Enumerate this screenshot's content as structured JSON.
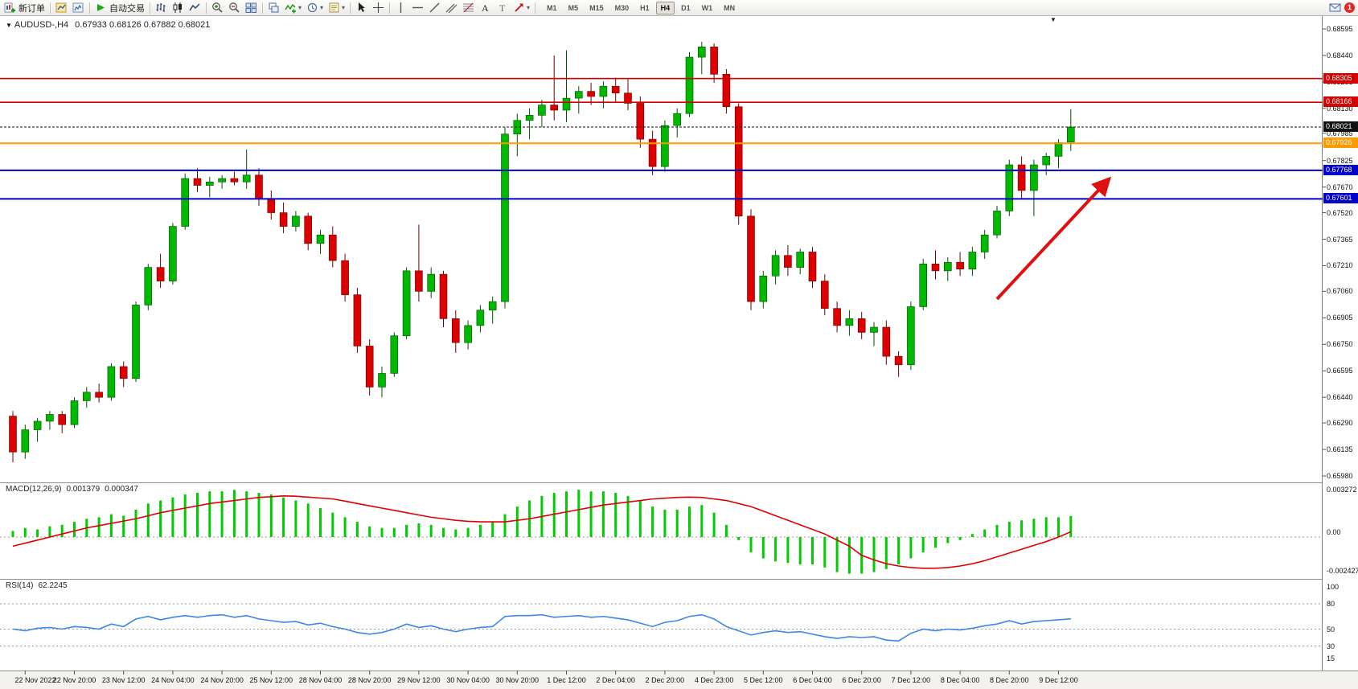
{
  "toolbar": {
    "new_order_label": "新订单",
    "autotrading_label": "自动交易",
    "timeframes": [
      "M1",
      "M5",
      "M15",
      "M30",
      "H1",
      "H4",
      "D1",
      "W1",
      "MN"
    ],
    "active_timeframe": "H4",
    "notification_count": "1"
  },
  "chart": {
    "menu_icon": "▼",
    "shift_marker": "▼",
    "title_symbol": "AUDUSD-,H4",
    "title_ohlc": "0.67933 0.68126 0.67882 0.68021"
  },
  "chart_data": {
    "type": "candlestick",
    "symbol": "AUDUSD-",
    "timeframe": "H4",
    "price_axis_labels": [
      "0.68595",
      "0.68440",
      "0.68285",
      "0.68130",
      "0.67985",
      "0.67825",
      "0.67670",
      "0.67520",
      "0.67365",
      "0.67210",
      "0.67060",
      "0.66905",
      "0.66750",
      "0.66595",
      "0.66440",
      "0.66290",
      "0.66135",
      "0.65980"
    ],
    "time_labels": [
      "22 Nov 2022",
      "22 Nov 20:00",
      "23 Nov 12:00",
      "24 Nov 04:00",
      "24 Nov 20:00",
      "25 Nov 12:00",
      "28 Nov 04:00",
      "28 Nov 20:00",
      "29 Nov 12:00",
      "30 Nov 04:00",
      "30 Nov 20:00",
      "1 Dec 12:00",
      "2 Dec 04:00",
      "2 Dec 20:00",
      "4 Dec 23:00",
      "5 Dec 12:00",
      "6 Dec 04:00",
      "6 Dec 20:00",
      "7 Dec 12:00",
      "8 Dec 04:00",
      "8 Dec 20:00",
      "9 Dec 12:00"
    ],
    "ohlc": [
      [
        0.6633,
        0.6636,
        0.6606,
        0.6612
      ],
      [
        0.6612,
        0.6628,
        0.6608,
        0.6625
      ],
      [
        0.6625,
        0.6632,
        0.6618,
        0.663
      ],
      [
        0.663,
        0.6636,
        0.6625,
        0.6634
      ],
      [
        0.6634,
        0.6636,
        0.6623,
        0.6628
      ],
      [
        0.6628,
        0.6644,
        0.6626,
        0.6642
      ],
      [
        0.6642,
        0.665,
        0.6638,
        0.6647
      ],
      [
        0.6647,
        0.6652,
        0.6641,
        0.6644
      ],
      [
        0.6644,
        0.6664,
        0.6642,
        0.6662
      ],
      [
        0.6662,
        0.6665,
        0.665,
        0.6655
      ],
      [
        0.6655,
        0.67,
        0.6653,
        0.6698
      ],
      [
        0.6698,
        0.6722,
        0.6695,
        0.672
      ],
      [
        0.672,
        0.6728,
        0.6708,
        0.6712
      ],
      [
        0.6712,
        0.6746,
        0.671,
        0.6744
      ],
      [
        0.6744,
        0.6775,
        0.6742,
        0.6772
      ],
      [
        0.6772,
        0.6778,
        0.6764,
        0.6768
      ],
      [
        0.6768,
        0.6773,
        0.6761,
        0.677
      ],
      [
        0.677,
        0.6774,
        0.6766,
        0.6772
      ],
      [
        0.6772,
        0.6776,
        0.6768,
        0.677
      ],
      [
        0.677,
        0.6789,
        0.6766,
        0.6774
      ],
      [
        0.6774,
        0.6778,
        0.6756,
        0.676
      ],
      [
        0.676,
        0.6765,
        0.6748,
        0.6752
      ],
      [
        0.6752,
        0.6758,
        0.674,
        0.6744
      ],
      [
        0.6744,
        0.6753,
        0.6741,
        0.675
      ],
      [
        0.675,
        0.6752,
        0.673,
        0.6734
      ],
      [
        0.6734,
        0.6742,
        0.6728,
        0.6739
      ],
      [
        0.6739,
        0.6744,
        0.672,
        0.6724
      ],
      [
        0.6724,
        0.6728,
        0.67,
        0.6704
      ],
      [
        0.6704,
        0.6708,
        0.667,
        0.6674
      ],
      [
        0.6674,
        0.6678,
        0.6645,
        0.665
      ],
      [
        0.665,
        0.6662,
        0.6644,
        0.6658
      ],
      [
        0.6658,
        0.6682,
        0.6656,
        0.668
      ],
      [
        0.668,
        0.672,
        0.6678,
        0.6718
      ],
      [
        0.6718,
        0.6745,
        0.67,
        0.6706
      ],
      [
        0.6706,
        0.672,
        0.6702,
        0.6716
      ],
      [
        0.6716,
        0.6718,
        0.6685,
        0.669
      ],
      [
        0.669,
        0.6695,
        0.667,
        0.6676
      ],
      [
        0.6676,
        0.6689,
        0.6672,
        0.6686
      ],
      [
        0.6686,
        0.6698,
        0.6682,
        0.6695
      ],
      [
        0.6695,
        0.6703,
        0.6687,
        0.67
      ],
      [
        0.67,
        0.6802,
        0.6696,
        0.6798
      ],
      [
        0.6798,
        0.681,
        0.6785,
        0.6806
      ],
      [
        0.6806,
        0.6813,
        0.6795,
        0.6809
      ],
      [
        0.6809,
        0.6818,
        0.6802,
        0.6815
      ],
      [
        0.6815,
        0.6844,
        0.6806,
        0.6812
      ],
      [
        0.6812,
        0.6847,
        0.6805,
        0.6819
      ],
      [
        0.6819,
        0.6826,
        0.681,
        0.6823
      ],
      [
        0.6823,
        0.6828,
        0.6815,
        0.682
      ],
      [
        0.682,
        0.6829,
        0.6813,
        0.6826
      ],
      [
        0.6826,
        0.6831,
        0.6817,
        0.6822
      ],
      [
        0.6822,
        0.683,
        0.6812,
        0.6816
      ],
      [
        0.6816,
        0.682,
        0.679,
        0.6795
      ],
      [
        0.6795,
        0.68,
        0.6774,
        0.6779
      ],
      [
        0.6779,
        0.6806,
        0.6776,
        0.6803
      ],
      [
        0.6803,
        0.6813,
        0.6796,
        0.681
      ],
      [
        0.681,
        0.6846,
        0.6808,
        0.6843
      ],
      [
        0.6843,
        0.6852,
        0.6833,
        0.6849
      ],
      [
        0.6849,
        0.6851,
        0.6828,
        0.6833
      ],
      [
        0.6833,
        0.6836,
        0.681,
        0.6814
      ],
      [
        0.6814,
        0.6816,
        0.6745,
        0.675
      ],
      [
        0.675,
        0.6754,
        0.6695,
        0.67
      ],
      [
        0.67,
        0.6718,
        0.6696,
        0.6715
      ],
      [
        0.6715,
        0.673,
        0.671,
        0.6727
      ],
      [
        0.6727,
        0.6733,
        0.6715,
        0.672
      ],
      [
        0.672,
        0.6731,
        0.6716,
        0.6729
      ],
      [
        0.6729,
        0.6732,
        0.6708,
        0.6712
      ],
      [
        0.6712,
        0.6716,
        0.6692,
        0.6696
      ],
      [
        0.6696,
        0.67,
        0.6682,
        0.6686
      ],
      [
        0.6686,
        0.6695,
        0.668,
        0.669
      ],
      [
        0.669,
        0.6694,
        0.6678,
        0.6682
      ],
      [
        0.6682,
        0.6688,
        0.6674,
        0.6685
      ],
      [
        0.6685,
        0.6689,
        0.6663,
        0.6668
      ],
      [
        0.6668,
        0.6671,
        0.6656,
        0.6663
      ],
      [
        0.6663,
        0.67,
        0.666,
        0.6697
      ],
      [
        0.6697,
        0.6725,
        0.6695,
        0.6722
      ],
      [
        0.6722,
        0.673,
        0.6713,
        0.6718
      ],
      [
        0.6718,
        0.6726,
        0.6712,
        0.6723
      ],
      [
        0.6723,
        0.6729,
        0.6715,
        0.6719
      ],
      [
        0.6719,
        0.6732,
        0.6715,
        0.6729
      ],
      [
        0.6729,
        0.6742,
        0.6725,
        0.6739
      ],
      [
        0.6739,
        0.6756,
        0.6737,
        0.6753
      ],
      [
        0.6753,
        0.6783,
        0.675,
        0.678
      ],
      [
        0.678,
        0.6785,
        0.676,
        0.6765
      ],
      [
        0.6765,
        0.6783,
        0.675,
        0.678
      ],
      [
        0.678,
        0.6787,
        0.6774,
        0.6785
      ],
      [
        0.6785,
        0.6795,
        0.6778,
        0.6793
      ],
      [
        0.67933,
        0.68126,
        0.67882,
        0.68021
      ]
    ],
    "levels": [
      {
        "price": 0.68305,
        "label": "0.68305",
        "color": "#d40000",
        "width": 1.6
      },
      {
        "price": 0.68166,
        "label": "0.68166",
        "color": "#d40000",
        "width": 1.6
      },
      {
        "price": 0.67926,
        "label": "0.67926",
        "color": "#ff9900",
        "width": 2
      },
      {
        "price": 0.67768,
        "label": "0.67768",
        "color": "#0000cc",
        "width": 2
      },
      {
        "price": 0.67601,
        "label": "0.67601",
        "color": "#0000cc",
        "width": 2
      }
    ],
    "current_price": {
      "price": 0.68021,
      "label": "0.68021",
      "tag_color": "#111111"
    },
    "macd": {
      "label": "MACD(12,26,9)",
      "value_main": "0.001379",
      "value_signal": "0.000347",
      "axis_labels": [
        "0.003272",
        "0.00",
        "-0.002427"
      ],
      "axis_values": [
        0.003272,
        0,
        -0.002427
      ],
      "histogram_color": "#00cc00",
      "signal_color": "#e00000",
      "histogram": [
        0.0004,
        0.0006,
        0.0005,
        0.0007,
        0.0008,
        0.001,
        0.0012,
        0.0013,
        0.0015,
        0.0014,
        0.0018,
        0.0022,
        0.0024,
        0.0026,
        0.0028,
        0.0029,
        0.003,
        0.003,
        0.0031,
        0.003,
        0.0029,
        0.0028,
        0.0026,
        0.0024,
        0.0022,
        0.0019,
        0.0016,
        0.0013,
        0.001,
        0.0007,
        0.0006,
        0.0006,
        0.0008,
        0.0009,
        0.0008,
        0.0006,
        0.0005,
        0.0006,
        0.0008,
        0.001,
        0.0015,
        0.002,
        0.0024,
        0.0027,
        0.0029,
        0.003,
        0.0031,
        0.003,
        0.003,
        0.0029,
        0.0027,
        0.0024,
        0.002,
        0.0018,
        0.0018,
        0.002,
        0.0021,
        0.0016,
        0.0008,
        -0.0002,
        -0.001,
        -0.0014,
        -0.0016,
        -0.0017,
        -0.0018,
        -0.0018,
        -0.002,
        -0.0023,
        -0.0024,
        -0.0024,
        -0.0023,
        -0.0021,
        -0.0018,
        -0.0014,
        -0.001,
        -0.0007,
        -0.0004,
        -0.0002,
        0.0002,
        0.0005,
        0.0008,
        0.001,
        0.0011,
        0.0012,
        0.0013,
        0.0013,
        0.001379
      ],
      "signal": [
        -0.0006,
        -0.0004,
        -0.0002,
        0,
        0.0002,
        0.0004,
        0.0006,
        0.00075,
        0.0009,
        0.00105,
        0.0012,
        0.0014,
        0.0016,
        0.00175,
        0.0019,
        0.00205,
        0.0022,
        0.0023,
        0.0024,
        0.0025,
        0.0026,
        0.00265,
        0.0027,
        0.00268,
        0.00262,
        0.00256,
        0.0025,
        0.00236,
        0.0022,
        0.00205,
        0.0019,
        0.00175,
        0.0016,
        0.00145,
        0.0013,
        0.0012,
        0.0011,
        0.00103,
        0.001,
        0.001,
        0.001,
        0.0011,
        0.0012,
        0.00135,
        0.0015,
        0.00165,
        0.0018,
        0.00195,
        0.0021,
        0.0022,
        0.0023,
        0.0024,
        0.0025,
        0.00255,
        0.0026,
        0.00262,
        0.0026,
        0.0025,
        0.0024,
        0.0022,
        0.002,
        0.0017,
        0.0014,
        0.0011,
        0.0008,
        0.0005,
        0.0002,
        -0.0002,
        -0.0006,
        -0.0012,
        -0.0015,
        -0.00175,
        -0.0019,
        -0.002,
        -0.00205,
        -0.00205,
        -0.002,
        -0.0019,
        -0.00175,
        -0.00155,
        -0.0013,
        -0.00105,
        -0.0008,
        -0.00055,
        -0.0003,
        0,
        0.000347
      ]
    },
    "rsi": {
      "label": "RSI(14)",
      "value": "62.2245",
      "line_color": "#3e86e8",
      "axis_labels": [
        "100",
        "80",
        "50",
        "30",
        "15"
      ],
      "level_lines": [
        80,
        50,
        30
      ],
      "values": [
        50,
        48,
        51,
        52,
        50,
        53,
        52,
        50,
        56,
        53,
        62,
        65,
        61,
        64,
        66,
        64,
        66,
        67,
        64,
        66,
        62,
        60,
        58,
        59,
        55,
        57,
        53,
        50,
        46,
        44,
        46,
        50,
        56,
        52,
        54,
        50,
        47,
        50,
        52,
        53,
        65,
        66,
        66,
        67,
        64,
        65,
        66,
        64,
        65,
        63,
        61,
        57,
        53,
        58,
        60,
        65,
        67,
        62,
        53,
        48,
        43,
        46,
        48,
        46,
        47,
        44,
        41,
        39,
        41,
        40,
        41,
        37,
        36,
        45,
        50,
        48,
        50,
        49,
        51,
        54,
        56,
        60,
        56,
        59,
        60,
        61,
        62.2245
      ]
    },
    "annotation": {
      "type": "arrow",
      "color": "#e01010",
      "direction": "up-right"
    }
  }
}
